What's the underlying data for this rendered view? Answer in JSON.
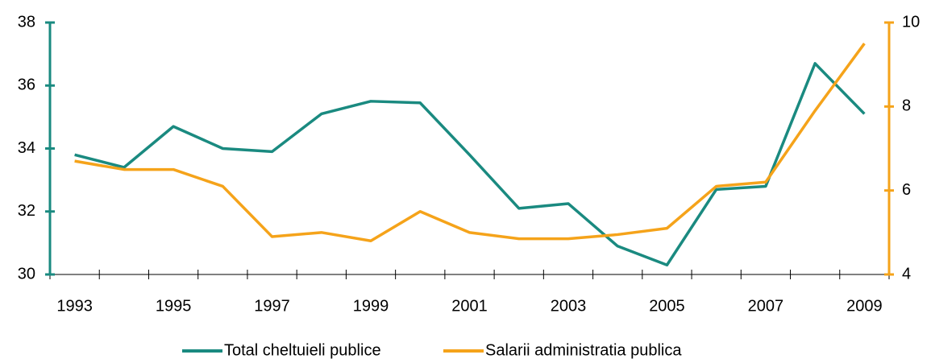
{
  "chart_data": {
    "type": "line",
    "categories": [
      "1993",
      null,
      "1995",
      null,
      "1997",
      null,
      "1999",
      null,
      "2001",
      null,
      "2003",
      null,
      "2005",
      null,
      "2007",
      null,
      "2009"
    ],
    "series": [
      {
        "name": "Total cheltuieli publice",
        "color": "#1a8a80",
        "axis": "y",
        "values": [
          33.8,
          33.4,
          34.7,
          34.0,
          33.9,
          35.1,
          35.5,
          35.45,
          33.8,
          32.1,
          32.25,
          30.9,
          30.3,
          32.7,
          32.8,
          36.7,
          35.1
        ]
      },
      {
        "name": "Salarii administratia publica",
        "color": "#f5a31a",
        "axis": "y2",
        "values": [
          6.7,
          6.5,
          6.5,
          6.1,
          4.9,
          5.0,
          4.8,
          5.5,
          5.0,
          4.85,
          4.85,
          4.95,
          5.1,
          6.1,
          6.2,
          7.9,
          9.5
        ]
      }
    ],
    "ylim": [
      30,
      38
    ],
    "yticks": [
      30,
      32,
      34,
      36,
      38
    ],
    "y2lim": [
      4,
      10
    ],
    "y2ticks": [
      4,
      6,
      8,
      10
    ],
    "legend": "bottom"
  }
}
